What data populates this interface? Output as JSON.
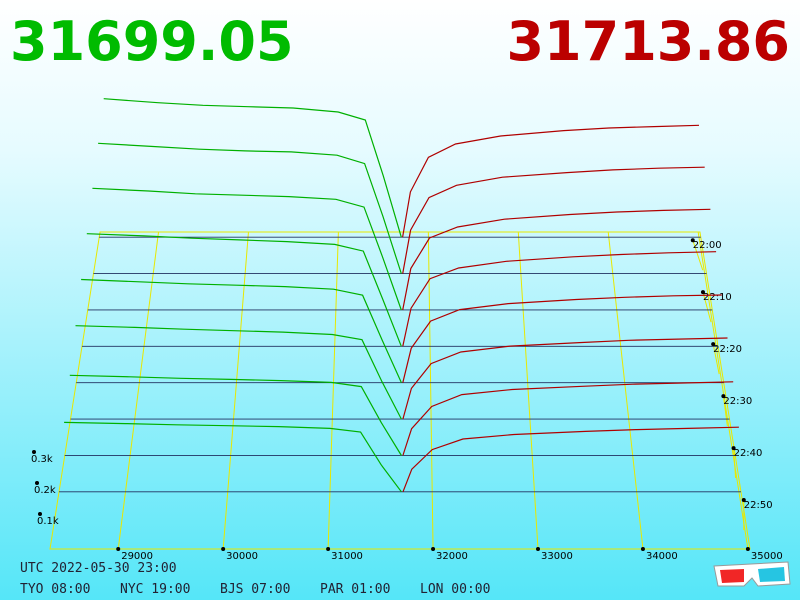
{
  "header": {
    "bid_price": "31699.05",
    "ask_price": "31713.86"
  },
  "chart_data": {
    "type": "depth3d",
    "xlim": [
      28350,
      35020
    ],
    "xticks": [
      29000,
      30000,
      31000,
      32000,
      33000,
      34000,
      35000
    ],
    "zlim": [
      -1,
      60
    ],
    "zticks": [
      {
        "value": 0,
        "label": "22:00"
      },
      {
        "value": 10,
        "label": "22:10"
      },
      {
        "value": 20,
        "label": "22:20"
      },
      {
        "value": 30,
        "label": "22:30"
      },
      {
        "value": 40,
        "label": "22:40"
      },
      {
        "value": 50,
        "label": "22:50"
      }
    ],
    "yticks": [
      {
        "value": 100,
        "label": "0.1k"
      },
      {
        "value": 200,
        "label": "0.2k"
      },
      {
        "value": 300,
        "label": "0.3k"
      }
    ],
    "bid_color": "#00b000",
    "ask_color": "#b00000",
    "bid_prices": [
      28400,
      29000,
      29500,
      30000,
      30500,
      31000,
      31300,
      31500,
      31699
    ],
    "ask_prices": [
      31714,
      31800,
      32000,
      32300,
      32800,
      33500,
      34000,
      34500,
      35000
    ],
    "snapshots": [
      {
        "z": 0,
        "bid": [
          520,
          505,
          495,
          490,
          485,
          470,
          440,
          230,
          0
        ],
        "ask": [
          0,
          170,
          300,
          350,
          380,
          400,
          410,
          415,
          420
        ]
      },
      {
        "z": 7,
        "bid": [
          480,
          468,
          458,
          452,
          448,
          436,
          405,
          210,
          0
        ],
        "ask": [
          0,
          160,
          280,
          325,
          355,
          372,
          382,
          388,
          392
        ]
      },
      {
        "z": 14,
        "bid": [
          440,
          430,
          420,
          415,
          410,
          400,
          372,
          190,
          0
        ],
        "ask": [
          0,
          150,
          260,
          300,
          328,
          345,
          354,
          360,
          364
        ]
      },
      {
        "z": 21,
        "bid": [
          400,
          392,
          384,
          378,
          372,
          362,
          338,
          170,
          0
        ],
        "ask": [
          0,
          135,
          240,
          278,
          302,
          318,
          326,
          332,
          336
        ]
      },
      {
        "z": 28,
        "bid": [
          360,
          352,
          345,
          340,
          335,
          326,
          305,
          150,
          0
        ],
        "ask": [
          0,
          120,
          215,
          255,
          276,
          290,
          298,
          303,
          306
        ]
      },
      {
        "z": 35,
        "bid": [
          320,
          314,
          308,
          303,
          298,
          290,
          272,
          130,
          0
        ],
        "ask": [
          0,
          105,
          190,
          230,
          250,
          262,
          270,
          274,
          278
        ]
      },
      {
        "z": 42,
        "bid": [
          270,
          265,
          260,
          256,
          252,
          246,
          232,
          110,
          0
        ],
        "ask": [
          0,
          90,
          165,
          205,
          222,
          233,
          240,
          244,
          248
        ]
      },
      {
        "z": 49,
        "bid": [
          230,
          226,
          222,
          219,
          216,
          210,
          198,
          90,
          0
        ],
        "ask": [
          0,
          75,
          140,
          175,
          190,
          200,
          206,
          210,
          214
        ]
      }
    ]
  },
  "footer": {
    "utc": "UTC 2022-05-30 23:00",
    "zones": [
      "TYO 08:00",
      "NYC 19:00",
      "BJS 07:00",
      "PAR 01:00",
      "LON 00:00"
    ]
  }
}
